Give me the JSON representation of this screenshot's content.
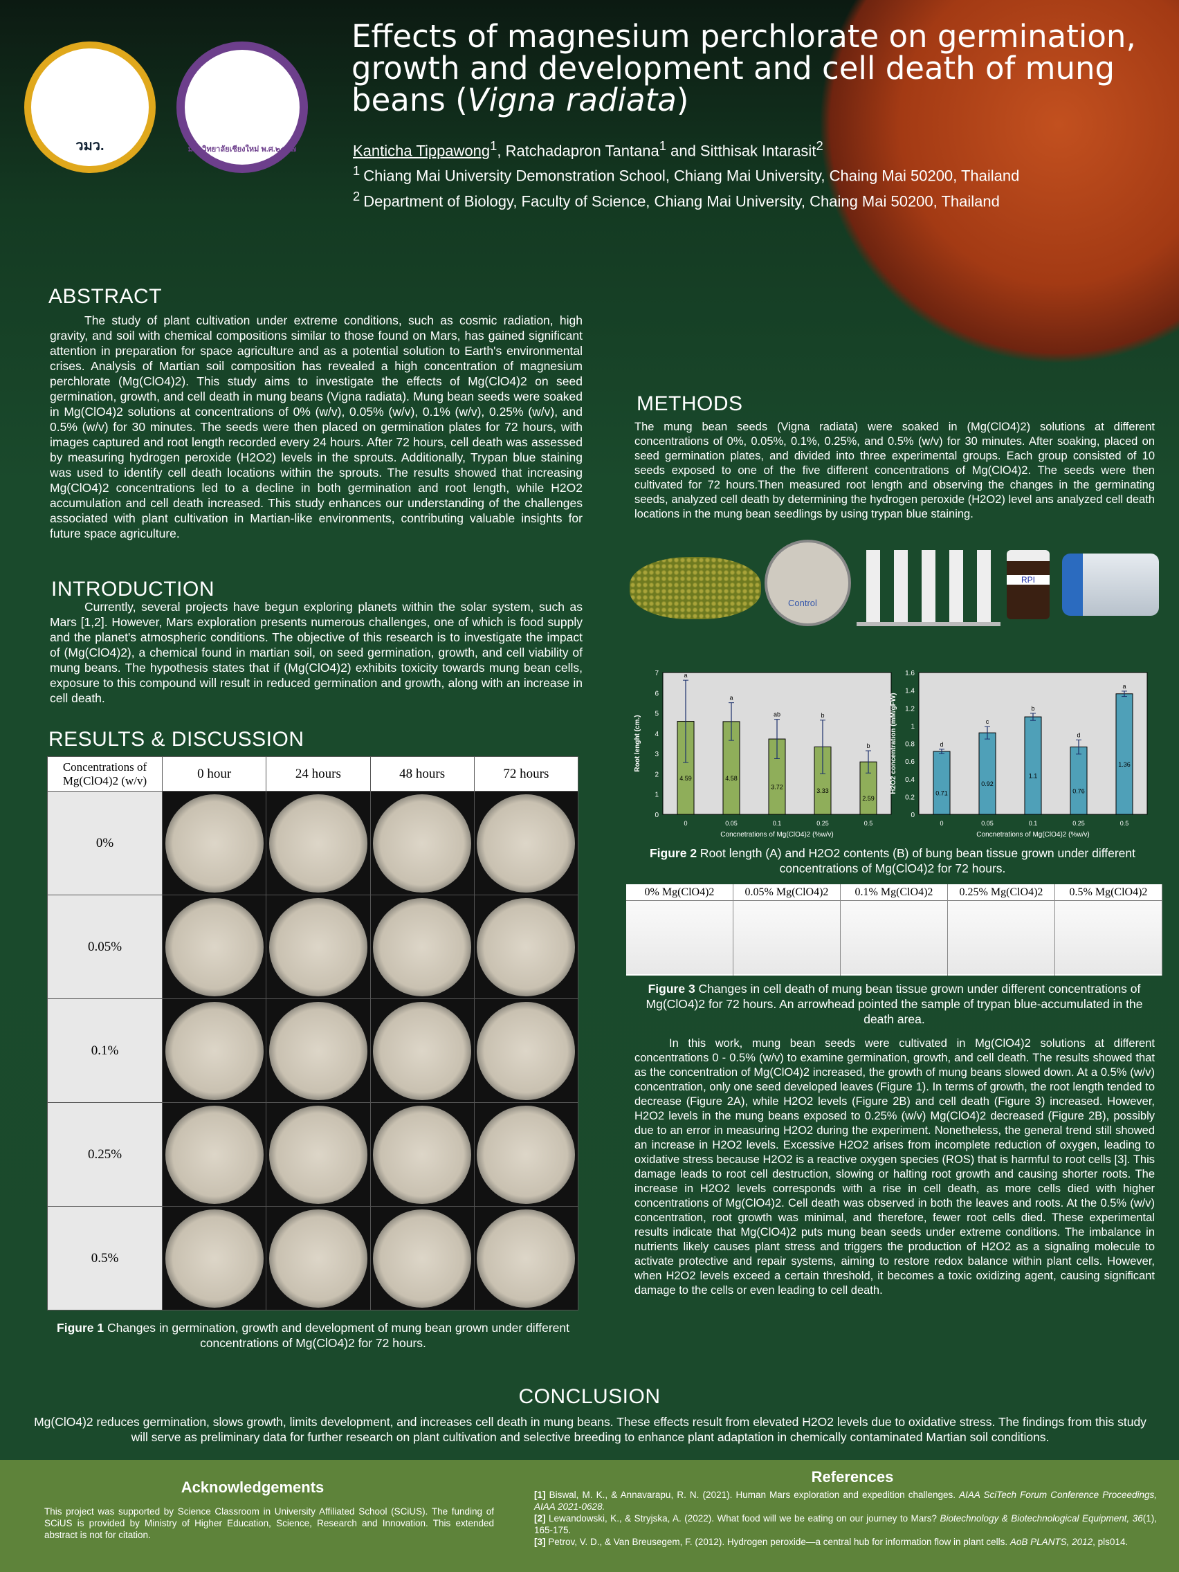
{
  "header": {
    "title_main": "Effects of magnesium perchlorate on germination, growth and development and cell death of mung beans (",
    "title_italic": "Vigna radiata",
    "title_end": ")",
    "author1": "Kanticha Tippawong",
    "author_rest": ", Ratchadapron Tantana",
    "author3": " and Sitthisak Intarasit",
    "aff1": "Chiang Mai University Demonstration School, Chiang Mai University, Chaing Mai 50200, Thailand",
    "aff2": "Department of Biology, Faculty of Science, Chiang Mai University, Chaing Mai 50200, Thailand",
    "logo1_text": "วมว.",
    "logo2_text": "มหาวิทยาลัยเชียงใหม่ พ.ศ.๒๕๐๗"
  },
  "abstract": {
    "heading": "ABSTRACT",
    "text": "The study of plant cultivation under extreme conditions, such as cosmic radiation, high gravity, and soil with chemical compositions similar to those found on Mars, has gained significant attention in preparation for space agriculture and as a potential solution to Earth's environmental crises. Analysis of Martian soil composition has revealed a high concentration of magnesium perchlorate (Mg(ClO4)2). This study aims to investigate the effects of Mg(ClO4)2 on seed germination, growth, and cell death in mung beans (Vigna radiata). Mung bean seeds were soaked in Mg(ClO4)2 solutions at concentrations of 0% (w/v), 0.05% (w/v), 0.1% (w/v), 0.25% (w/v), and 0.5% (w/v) for 30 minutes. The seeds were then placed on germination plates for 72 hours, with images captured and root length recorded every 24 hours. After 72 hours, cell death was assessed by measuring hydrogen peroxide (H2O2) levels in the sprouts. Additionally, Trypan blue staining was used to identify cell death locations within the sprouts. The results showed that increasing Mg(ClO4)2 concentrations led to a decline in both germination and root length, while H2O2 accumulation and cell death increased. This study enhances our understanding of the challenges associated with plant cultivation in Martian-like environments, contributing valuable insights for future space agriculture."
  },
  "introduction": {
    "heading": "INTRODUCTION",
    "text": "Currently, several projects have begun exploring planets within the solar system, such as Mars [1,2]. However, Mars exploration presents numerous challenges, one of which is food supply and the planet's atmospheric conditions. The objective of this research is to investigate the impact of (Mg(ClO4)2), a chemical found in martian soil, on seed germination, growth, and cell viability of mung beans. The hypothesis states that if (Mg(ClO4)2) exhibits toxicity towards mung bean cells, exposure to this compound will result in reduced germination and growth, along with an increase in cell death."
  },
  "results": {
    "heading": "RESULTS & DISCUSSION",
    "table_header": [
      "Concentrations of Mg(ClO4)2 (w/v)",
      "0 hour",
      "24 hours",
      "48 hours",
      "72 hours"
    ],
    "rows": [
      "0%",
      "0.05%",
      "0.1%",
      "0.25%",
      "0.5%"
    ],
    "fig1_label": "Figure 1",
    "fig1_caption": " Changes in germination, growth and development of mung bean grown under different concentrations of Mg(ClO4)2 for 72 hours.",
    "discussion": "In this work, mung bean seeds were cultivated in Mg(ClO4)2 solutions at different concentrations 0 - 0.5% (w/v) to examine germination, growth, and cell death. The results showed that as the concentration of Mg(ClO4)2 increased, the growth of mung beans slowed down. At a 0.5% (w/v) concentration, only one seed developed leaves (Figure 1). In terms of growth, the root length tended to decrease (Figure 2A), while H2O2 levels (Figure 2B) and cell death (Figure 3) increased. However, H2O2 levels in the mung beans exposed to 0.25% (w/v) Mg(ClO4)2 decreased (Figure 2B), possibly due to an error in measuring H2O2 during the experiment. Nonetheless, the general trend still showed an increase in H2O2 levels. Excessive H2O2 arises from incomplete reduction of oxygen, leading to oxidative stress because H2O2 is a reactive oxygen species (ROS) that is harmful to root cells [3]. This damage leads to root cell destruction, slowing or halting root growth and causing shorter roots. The increase in H2O2 levels corresponds with a rise in cell death, as more cells died with higher concentrations of Mg(ClO4)2. Cell death was observed in both the leaves and roots. At the 0.5% (w/v) concentration, root growth was minimal, and therefore, fewer root cells died. These experimental results indicate that Mg(ClO4)2 puts mung bean seeds under extreme conditions. The imbalance in nutrients likely causes plant stress and triggers the production of H2O2 as a signaling molecule to activate protective and repair systems, aiming to restore redox balance within plant cells. However, when H2O2 levels exceed a certain threshold, it becomes a toxic oxidizing agent, causing significant damage to the cells or even leading to cell death."
  },
  "methods": {
    "heading": "METHODS",
    "text": "The mung bean seeds (Vigna radiata) were soaked in (Mg(ClO4)2) solutions at different concentrations of 0%, 0.05%, 0.1%, 0.25%, and 0.5% (w/v) for 30 minutes. After soaking, placed on seed germination plates, and divided into three experimental groups. Each group consisted of 10 seeds exposed to one of the five different concentrations of Mg(ClO4)2. The seeds were then cultivated for 72 hours.Then measured root length and observing the changes in the germinating seeds, analyzed cell death by determining the hydrogen peroxide (H2O2) level ans analyzed cell death locations in the mung bean seedlings by using trypan blue staining.",
    "dish_label": "Control",
    "bottle_label": "RPI"
  },
  "chart_data": [
    {
      "type": "bar",
      "xlabel": "Concnetrations of Mg(ClO4)2 (%w/v)",
      "ylabel": "Root lenght (cm.)",
      "categories": [
        "0",
        "0.05",
        "0.1",
        "0.25",
        "0.5"
      ],
      "values": [
        4.59,
        4.58,
        3.72,
        3.33,
        2.59
      ],
      "errors": [
        2.03,
        0.93,
        0.97,
        1.32,
        0.55
      ],
      "letters": [
        "a",
        "a",
        "ab",
        "b",
        "b"
      ],
      "ylim": [
        0,
        7
      ],
      "yticks": [
        0,
        1,
        2,
        3,
        4,
        5,
        6,
        7
      ],
      "color": "#8fae5a"
    },
    {
      "type": "bar",
      "xlabel": "Concnetrations of Mg(ClO4)2 (%w/v)",
      "ylabel": "H2O2 concentration (mM/gFW)",
      "categories": [
        "0",
        "0.05",
        "0.1",
        "0.25",
        "0.5"
      ],
      "values": [
        0.71,
        0.92,
        1.1,
        0.76,
        1.36
      ],
      "errors": [
        0.025,
        0.07,
        0.04,
        0.08,
        0.03
      ],
      "letters": [
        "d",
        "c",
        "b",
        "d",
        "a"
      ],
      "ylim": [
        0,
        1.6
      ],
      "yticks": [
        0,
        0.2,
        0.4,
        0.6,
        0.8,
        1,
        1.2,
        1.4,
        1.6
      ],
      "color": "#4fa0b8"
    }
  ],
  "fig2": {
    "label": "Figure 2",
    "caption": " Root length (A) and H2O2 contents (B) of bung bean tissue grown under different concentrations of Mg(ClO4)2 for 72 hours."
  },
  "fig3": {
    "headers": [
      "0% Mg(ClO4)2",
      "0.05% Mg(ClO4)2",
      "0.1% Mg(ClO4)2",
      "0.25% Mg(ClO4)2",
      "0.5% Mg(ClO4)2"
    ],
    "label": "Figure 3",
    "caption": " Changes in cell death of mung bean tissue grown under different concentrations of Mg(ClO4)2 for 72 hours. An arrowhead pointed the sample of trypan blue-accumulated in the death area."
  },
  "conclusion": {
    "heading": "CONCLUSION",
    "text": "Mg(ClO4)2 reduces germination, slows growth, limits development, and increases cell death in mung beans. These effects result from elevated H2O2 levels due to oxidative stress. The findings from this study will serve as preliminary data for further research on plant cultivation and selective breeding to enhance plant adaptation in chemically contaminated Martian soil conditions."
  },
  "acknowledgements": {
    "heading": "Acknowledgements",
    "text": "This project was supported by Science Classroom in University Affiliated School (SCiUS). The funding of SCiUS is provided by Ministry of Higher Education, Science, Research and Innovation. This extended abstract is not for citation."
  },
  "references": {
    "heading": "References",
    "items": [
      {
        "n": "[1]",
        "text": " Biswal, M. K., & Annavarapu, R. N. (2021). Human Mars exploration and expedition challenges. ",
        "ital": "AIAA SciTech Forum Conference Proceedings, AIAA 2021-0628."
      },
      {
        "n": "[2]",
        "text": " Lewandowski, K., & Stryjska, A. (2022). What food will we be eating on our journey to Mars? ",
        "ital": "Biotechnology & Biotechnological Equipment, 36",
        "tail": "(1), 165-175."
      },
      {
        "n": "[3]",
        "text": " Petrov, V. D., & Van Breusegem, F. (2012). Hydrogen peroxide—a central hub for information flow in plant cells. ",
        "ital": "AoB PLANTS, 2012",
        "tail": ", pls014."
      }
    ]
  }
}
